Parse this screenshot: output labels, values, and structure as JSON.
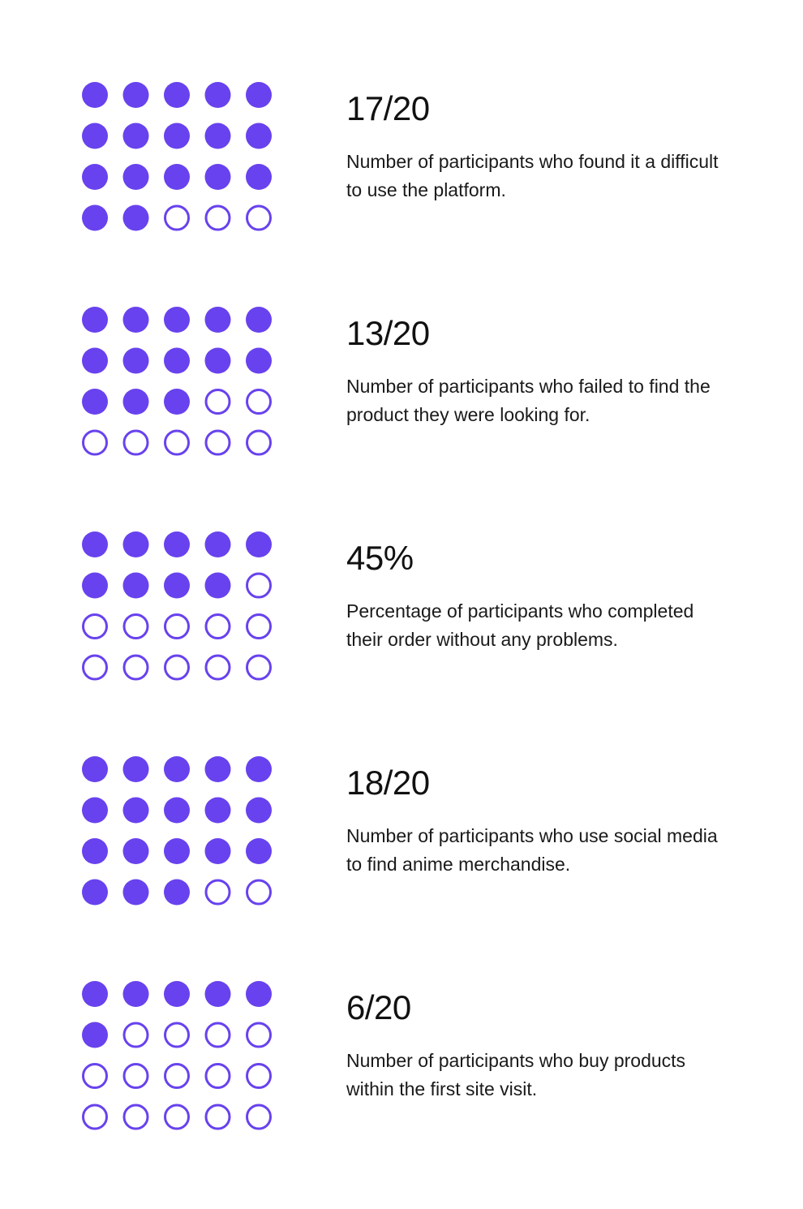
{
  "colors": {
    "accent": "#6842EE",
    "background": "#FFFFFF",
    "text": "#111111"
  },
  "chart_data": {
    "type": "dot-matrix",
    "grid": {
      "rows": 4,
      "cols": 5,
      "total": 20
    },
    "stats": [
      {
        "value_label": "17/20",
        "filled": 17,
        "total": 20,
        "description": "Number of participants who found it a difficult to use the platform."
      },
      {
        "value_label": "13/20",
        "filled": 13,
        "total": 20,
        "description": "Number of participants who failed to find the product they were looking for."
      },
      {
        "value_label": "45%",
        "filled": 9,
        "total": 20,
        "description": "Percentage of participants who completed their order without any problems."
      },
      {
        "value_label": "18/20",
        "filled": 18,
        "total": 20,
        "description": "Number of participants who use social media to find anime merchandise."
      },
      {
        "value_label": "6/20",
        "filled": 6,
        "total": 20,
        "description": "Number of participants who buy products within the first site visit."
      }
    ]
  }
}
